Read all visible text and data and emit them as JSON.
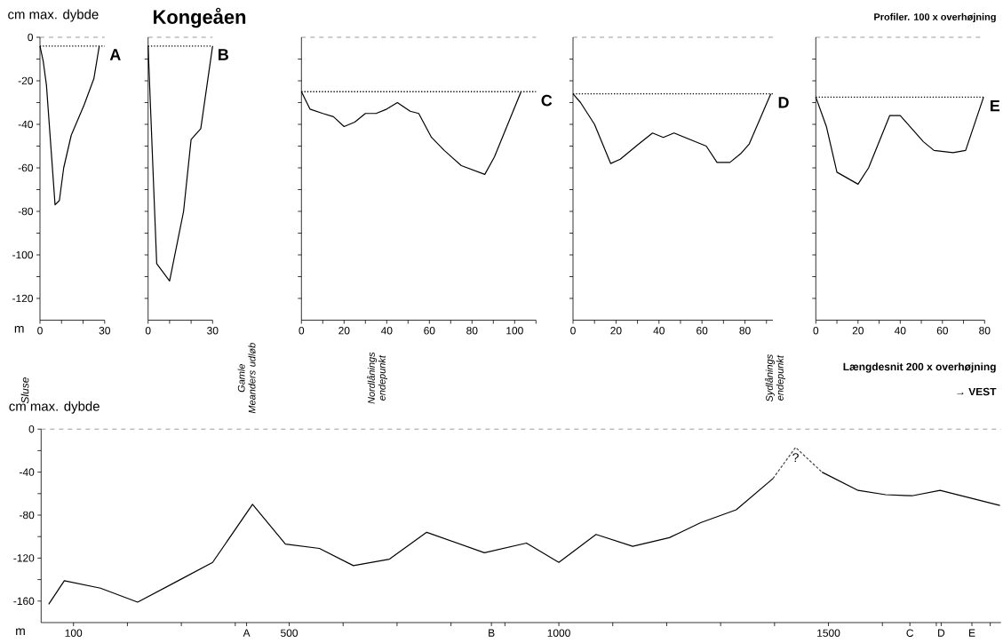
{
  "chart_data": [
    {
      "type": "line",
      "title": "A",
      "xlabel": "m",
      "ylabel": "cm max. dybde",
      "annotations": [
        "Kongeåen"
      ],
      "tick_labels": "xy",
      "xlim": [
        0,
        30
      ],
      "ylim": [
        -130,
        0
      ],
      "xticks": [
        0,
        {
          "value": 10,
          "label": null
        },
        {
          "value": 20,
          "label": null
        },
        30
      ],
      "yticks": [
        0,
        {
          "value": -10,
          "label": null
        },
        -20,
        {
          "value": -30,
          "label": null
        },
        -40,
        {
          "value": -50,
          "label": null
        },
        -60,
        {
          "value": -70,
          "label": null
        },
        -80,
        {
          "value": -90,
          "label": null
        },
        -100,
        {
          "value": -110,
          "label": null
        },
        -120
      ],
      "ref_lines": [
        {
          "axis": "y",
          "value": 0,
          "line_style": "dashed"
        },
        {
          "axis": "y",
          "value": -4,
          "line_style": "dotted"
        }
      ],
      "series": [
        {
          "color": "#000000",
          "x": [
            0,
            1.5,
            3,
            7,
            9,
            11,
            14.5,
            20.5,
            25,
            27.5
          ],
          "values": [
            -4,
            -11,
            -22,
            -77,
            -75,
            -60,
            -45,
            -31,
            -19,
            -4
          ]
        }
      ]
    },
    {
      "type": "line",
      "title": "B",
      "tick_labels": "x",
      "xlim": [
        0,
        30
      ],
      "ylim": [
        -130,
        0
      ],
      "xticks": [
        0,
        {
          "value": 10,
          "label": null
        },
        {
          "value": 20,
          "label": null
        },
        30
      ],
      "yticks": [
        {
          "value": -10,
          "label": null
        },
        {
          "value": -20,
          "label": null
        },
        {
          "value": -30,
          "label": null
        },
        {
          "value": -40,
          "label": null
        },
        {
          "value": -50,
          "label": null
        },
        {
          "value": -60,
          "label": null
        },
        {
          "value": -70,
          "label": null
        },
        {
          "value": -80,
          "label": null
        },
        {
          "value": -90,
          "label": null
        },
        {
          "value": -100,
          "label": null
        },
        {
          "value": -110,
          "label": null
        },
        {
          "value": -120,
          "label": null
        }
      ],
      "ref_lines": [
        {
          "axis": "y",
          "value": 0,
          "line_style": "dashed"
        },
        {
          "axis": "y",
          "value": -4,
          "line_style": "dotted"
        }
      ],
      "series": [
        {
          "color": "#000000",
          "x": [
            0,
            4,
            10,
            16.5,
            20,
            24.5,
            30
          ],
          "values": [
            -4,
            -104,
            -112,
            -80,
            -47,
            -42,
            -4
          ]
        }
      ]
    },
    {
      "type": "line",
      "title": "C",
      "tick_labels": "x",
      "xlim": [
        0,
        110
      ],
      "ylim": [
        -130,
        0
      ],
      "xticks": [
        0,
        {
          "value": 10,
          "label": null
        },
        20,
        {
          "value": 30,
          "label": null
        },
        40,
        {
          "value": 50,
          "label": null
        },
        60,
        {
          "value": 70,
          "label": null
        },
        80,
        {
          "value": 90,
          "label": null
        },
        100,
        {
          "value": 110,
          "label": null
        }
      ],
      "yticks": [
        {
          "value": -10,
          "label": null
        },
        {
          "value": -20,
          "label": null
        },
        {
          "value": -30,
          "label": null
        },
        {
          "value": -40,
          "label": null
        },
        {
          "value": -50,
          "label": null
        },
        {
          "value": -60,
          "label": null
        },
        {
          "value": -70,
          "label": null
        },
        {
          "value": -80,
          "label": null
        },
        {
          "value": -90,
          "label": null
        },
        {
          "value": -100,
          "label": null
        },
        {
          "value": -110,
          "label": null
        },
        {
          "value": -120,
          "label": null
        }
      ],
      "ref_lines": [
        {
          "axis": "y",
          "value": 0,
          "line_style": "dashed"
        },
        {
          "axis": "y",
          "value": -25,
          "line_style": "dotted"
        }
      ],
      "series": [
        {
          "color": "#000000",
          "x": [
            0,
            4,
            10,
            15,
            20,
            25,
            30,
            35,
            40,
            45,
            51,
            55,
            61,
            67,
            75,
            86,
            90.5,
            103
          ],
          "values": [
            -25,
            -33,
            -35,
            -36.5,
            -41,
            -39,
            -35,
            -35,
            -33,
            -30,
            -34,
            -35,
            -46,
            -52,
            -59,
            -63,
            -55,
            -25
          ]
        }
      ]
    },
    {
      "type": "line",
      "title": "D",
      "tick_labels": "x",
      "xlim": [
        0,
        93
      ],
      "ylim": [
        -130,
        0
      ],
      "xticks": [
        0,
        {
          "value": 10,
          "label": null
        },
        20,
        {
          "value": 30,
          "label": null
        },
        40,
        {
          "value": 50,
          "label": null
        },
        60,
        {
          "value": 70,
          "label": null
        },
        80,
        {
          "value": 90,
          "label": null
        }
      ],
      "yticks": [
        {
          "value": -10,
          "label": null
        },
        {
          "value": -20,
          "label": null
        },
        {
          "value": -30,
          "label": null
        },
        {
          "value": -40,
          "label": null
        },
        {
          "value": -50,
          "label": null
        },
        {
          "value": -60,
          "label": null
        },
        {
          "value": -70,
          "label": null
        },
        {
          "value": -80,
          "label": null
        },
        {
          "value": -90,
          "label": null
        },
        {
          "value": -100,
          "label": null
        },
        {
          "value": -110,
          "label": null
        },
        {
          "value": -120,
          "label": null
        }
      ],
      "ref_lines": [
        {
          "axis": "y",
          "value": 0,
          "line_style": "dashed"
        },
        {
          "axis": "y",
          "value": -26,
          "line_style": "dotted"
        }
      ],
      "series": [
        {
          "color": "#000000",
          "x": [
            0,
            3.5,
            10,
            17.5,
            22,
            30,
            37,
            42,
            47,
            62,
            67,
            73,
            78,
            82,
            92
          ],
          "values": [
            -26,
            -30,
            -40,
            -58,
            -56,
            -49.5,
            -44,
            -46,
            -44,
            -50,
            -57.5,
            -57.5,
            -53.5,
            -49,
            -26
          ]
        }
      ]
    },
    {
      "type": "line",
      "title": "E",
      "annotations": [
        "Profiler. 100 x overhøjning"
      ],
      "tick_labels": "x",
      "xlim": [
        0,
        80
      ],
      "ylim": [
        -130,
        0
      ],
      "xticks": [
        0,
        {
          "value": 10,
          "label": null
        },
        20,
        {
          "value": 30,
          "label": null
        },
        40,
        {
          "value": 50,
          "label": null
        },
        60,
        {
          "value": 70,
          "label": null
        },
        80
      ],
      "yticks": [
        {
          "value": -10,
          "label": null
        },
        {
          "value": -20,
          "label": null
        },
        {
          "value": -30,
          "label": null
        },
        {
          "value": -40,
          "label": null
        },
        {
          "value": -50,
          "label": null
        },
        {
          "value": -60,
          "label": null
        },
        {
          "value": -70,
          "label": null
        },
        {
          "value": -80,
          "label": null
        },
        {
          "value": -90,
          "label": null
        },
        {
          "value": -100,
          "label": null
        },
        {
          "value": -110,
          "label": null
        },
        {
          "value": -120,
          "label": null
        }
      ],
      "ref_lines": [
        {
          "axis": "y",
          "value": 0,
          "line_style": "dashed"
        },
        {
          "axis": "y",
          "value": -27.5,
          "line_style": "dotted"
        }
      ],
      "series": [
        {
          "color": "#000000",
          "x": [
            0,
            5,
            10,
            20,
            25,
            35,
            40,
            51,
            56,
            65,
            71,
            79.5
          ],
          "values": [
            -27.5,
            -41,
            -62,
            -67.5,
            -60,
            -36,
            -36,
            -48,
            -52,
            -53,
            -52,
            -27.5
          ]
        }
      ]
    },
    {
      "type": "line",
      "xlabel": "m",
      "ylabel": "cm max. dybde",
      "xlim": [
        40,
        1820
      ],
      "ylim": [
        -180,
        0
      ],
      "annotations": [
        "Længdesnit 200 x overhøjning",
        "→ VEST",
        "Sluse",
        {
          "text": "Gamle Meanders udløb",
          "x": 421,
          "y": 0
        },
        {
          "text": "Nordlånings endepunkt",
          "x": 663,
          "y": 0
        },
        {
          "text": "Sydlånings endepunkt",
          "x": 1401,
          "y": 0
        },
        {
          "text": "?",
          "x": 1439,
          "y": -17
        }
      ],
      "xticks": [
        100,
        {
          "value": 200,
          "label": null
        },
        {
          "value": 300,
          "label": null
        },
        {
          "value": 400,
          "label": null
        },
        500,
        {
          "value": 600,
          "label": null
        },
        {
          "value": 700,
          "label": null
        },
        {
          "value": 800,
          "label": null
        },
        {
          "value": 900,
          "label": null
        },
        1000,
        {
          "value": 1100,
          "label": null
        },
        {
          "value": 1200,
          "label": null
        },
        {
          "value": 1300,
          "label": null
        },
        {
          "value": 1400,
          "label": null
        },
        1500,
        {
          "value": 1600,
          "label": null
        },
        {
          "value": 1700,
          "label": null
        },
        {
          "value": 1800,
          "label": null
        },
        {
          "value": 421,
          "label": "A"
        },
        {
          "value": 875,
          "label": "B"
        },
        {
          "value": 1651,
          "label": "C"
        },
        {
          "value": 1709,
          "label": "D"
        },
        {
          "value": 1766,
          "label": "E"
        }
      ],
      "yticks": [
        0,
        {
          "value": -20,
          "label": null
        },
        -40,
        {
          "value": -60,
          "label": null
        },
        -80,
        {
          "value": -100,
          "label": null
        },
        -120,
        {
          "value": -140,
          "label": null
        },
        -160
      ],
      "ref_lines": [
        {
          "axis": "y",
          "value": 0,
          "line_style": "dashed"
        }
      ],
      "series": [
        {
          "color": "#000000",
          "x": [
            54,
            83,
            150,
            219,
            298,
            358,
            432,
            493,
            556,
            619,
            686,
            755,
            862,
            940,
            1000,
            1069,
            1137,
            1205,
            1263,
            1329,
            1397,
            1439,
            1488,
            1555,
            1606,
            1655,
            1707,
            1818
          ],
          "values": [
            -163,
            -141,
            -148,
            -161,
            -140,
            -124,
            -70,
            -107,
            -111,
            -127,
            -121,
            -96,
            -115,
            -106,
            -124,
            -98,
            -109,
            -101,
            -87,
            -75,
            -46,
            null,
            -40,
            -57,
            -61,
            -62,
            -57,
            -71
          ]
        },
        {
          "type": "line",
          "line_style": "dotted",
          "color": "#404040",
          "x": [
            1397,
            1439,
            1488
          ],
          "values": [
            -46,
            -17,
            -40
          ]
        }
      ]
    }
  ]
}
